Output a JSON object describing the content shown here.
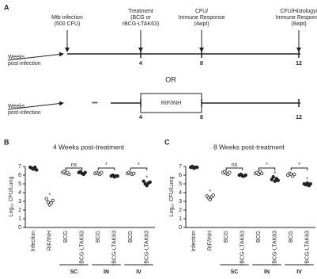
{
  "timeline": {
    "panel": "A",
    "events": [
      {
        "label": [
          "Mtb infection",
          "(500 CFU)"
        ]
      },
      {
        "label": [
          "Treatment",
          "(BCG or",
          "rBCG-LTAK63)"
        ]
      },
      {
        "label": [
          "CFU/",
          "Immune Response",
          "(4wpt)"
        ]
      },
      {
        "label": [
          "CFU/Histology/",
          "Immune Response",
          "(8wpt)"
        ]
      }
    ],
    "axis_label": [
      "Weeks",
      "post-infection"
    ],
    "weeks": [
      4,
      8,
      12
    ],
    "separator": "OR",
    "ellipsis": "•••",
    "treatment_box": "RIF/INH"
  },
  "chart_data": [
    {
      "type": "dot",
      "panel": "B",
      "title": "4 Weeks post-treatment",
      "y_label": "Log₁₀ CFU/Lung",
      "color": "#222222",
      "categories": [
        "Infection",
        "RIF/INH",
        "BCG",
        "rBCG-LTAK63",
        "BCG",
        "rBCG-LTAK63",
        "BCG",
        "rBCG-LTAK63"
      ],
      "filled": [
        true,
        false,
        false,
        true,
        false,
        true,
        false,
        true
      ],
      "points": [
        [
          6.9,
          6.8,
          6.7,
          6.9,
          6.6
        ],
        [
          3.3,
          2.9,
          2.6,
          2.8,
          3.1
        ],
        [
          6.3,
          6.4,
          6.2,
          6.3,
          6.1
        ],
        [
          6.3,
          6.4,
          6.2,
          6.1,
          6.3
        ],
        [
          6.2,
          6.3,
          6.2,
          6.1,
          6.3
        ],
        [
          5.9,
          6.0,
          5.8,
          5.9,
          5.9
        ],
        [
          6.2,
          6.3,
          6.2,
          6.1,
          6.2
        ],
        [
          5.3,
          5.0,
          4.8,
          5.1,
          5.2
        ]
      ],
      "groups": [
        {
          "name": "SC",
          "from": 2,
          "to": 3
        },
        {
          "name": "IN",
          "from": 4,
          "to": 5
        },
        {
          "name": "IV",
          "from": 6,
          "to": 7
        }
      ],
      "brackets": [
        {
          "text": "ns",
          "from": 2,
          "to": 3
        },
        {
          "text": "*",
          "from": 4,
          "to": 5
        },
        {
          "text": "*",
          "from": 6,
          "to": 7
        }
      ],
      "stars": [
        {
          "text": "*",
          "at": 1
        },
        {
          "text": "*",
          "at": 7
        }
      ],
      "ylim": [
        0,
        7
      ],
      "yticks": [
        0,
        1,
        2,
        3,
        4,
        5,
        6,
        7
      ]
    },
    {
      "type": "dot",
      "panel": "C",
      "title": "8 Weeks post-treatment",
      "y_label": "Log₁₀ CFU/Lung",
      "color": "#222222",
      "categories": [
        "Infection",
        "RIF/INH",
        "BCG",
        "rBCG-LTAK63",
        "BCG",
        "rBCG-LTAK63",
        "BCG",
        "rBCG-LTAK63"
      ],
      "filled": [
        true,
        false,
        false,
        true,
        false,
        true,
        false,
        true
      ],
      "points": [
        [
          6.9,
          7.0,
          6.8,
          6.9,
          6.9
        ],
        [
          3.6,
          3.4,
          3.2,
          3.5,
          3.7
        ],
        [
          6.3,
          6.4,
          6.2,
          6.1,
          6.3
        ],
        [
          6.0,
          6.1,
          5.9,
          5.9,
          6.0
        ],
        [
          6.2,
          6.3,
          6.1,
          6.4,
          6.2
        ],
        [
          5.5,
          5.8,
          5.3,
          5.6,
          5.4
        ],
        [
          6.0,
          6.2,
          6.1,
          5.9,
          6.1
        ],
        [
          5.0,
          4.9,
          5.1,
          4.8,
          5.0
        ]
      ],
      "groups": [
        {
          "name": "SC",
          "from": 2,
          "to": 3
        },
        {
          "name": "IN",
          "from": 4,
          "to": 5
        },
        {
          "name": "IV",
          "from": 6,
          "to": 7
        }
      ],
      "brackets": [
        {
          "text": "ns",
          "from": 2,
          "to": 3
        },
        {
          "text": "*",
          "from": 4,
          "to": 5
        },
        {
          "text": "*",
          "from": 6,
          "to": 7
        }
      ],
      "stars": [
        {
          "text": "*",
          "at": 1
        },
        {
          "text": "*",
          "at": 5
        },
        {
          "text": "*",
          "at": 7
        }
      ],
      "ylim": [
        0,
        7
      ],
      "yticks": [
        0,
        1,
        2,
        3,
        4,
        5,
        6,
        7
      ]
    }
  ]
}
